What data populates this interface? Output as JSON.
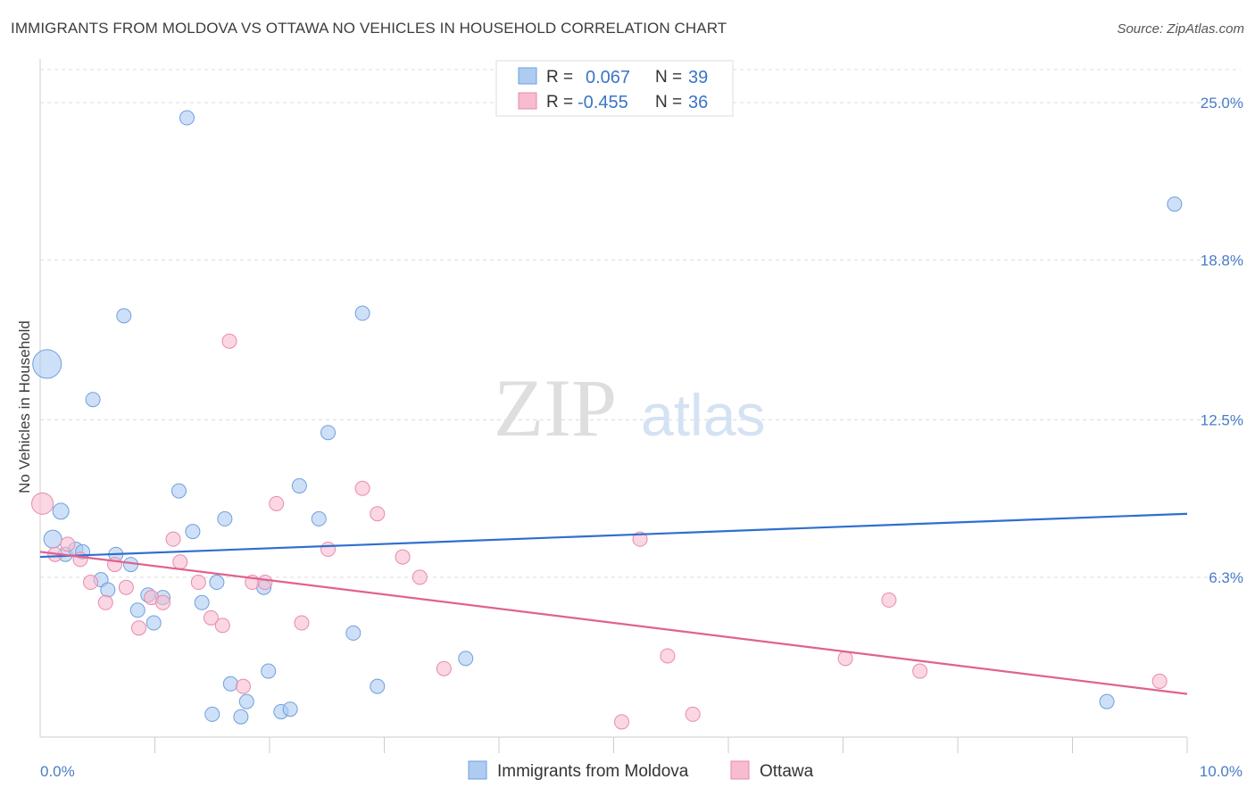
{
  "header": {
    "title": "IMMIGRANTS FROM MOLDOVA VS OTTAWA NO VEHICLES IN HOUSEHOLD CORRELATION CHART",
    "source": "Source: ZipAtlas.com"
  },
  "watermark": {
    "zip": "ZIP",
    "atlas": "atlas"
  },
  "legend": {
    "rows": [
      {
        "r_label": "R =",
        "r_value": "0.067",
        "n_label": "N =",
        "n_value": "39",
        "color": "#aecbf2"
      },
      {
        "r_label": "R =",
        "r_value": "-0.455",
        "n_label": "N =",
        "n_value": "36",
        "color": "#f7bcd0"
      }
    ]
  },
  "bottom_legend": [
    {
      "label": "Immigrants from Moldova",
      "color": "#aecbf2"
    },
    {
      "label": "Ottawa",
      "color": "#f7bcd0"
    }
  ],
  "chart_data": {
    "type": "scatter",
    "ylabel": "No Vehicles in Household",
    "xlim": [
      0,
      10
    ],
    "ylim": [
      0,
      26.3
    ],
    "x_tick_labels": [
      {
        "value": 0,
        "label": "0.0%"
      },
      {
        "value": 10,
        "label": "10.0%"
      }
    ],
    "y_ticks": [
      {
        "value": 6.3,
        "label": "6.3%"
      },
      {
        "value": 12.5,
        "label": "12.5%"
      },
      {
        "value": 18.8,
        "label": "18.8%"
      },
      {
        "value": 25.0,
        "label": "25.0%"
      }
    ],
    "x_minor_ticks": [
      1,
      2,
      3,
      4,
      5,
      6,
      7,
      8,
      9
    ],
    "grid": true,
    "legend_position": "top-center",
    "series": [
      {
        "name": "Immigrants from Moldova",
        "color": "#aecbf2",
        "stroke": "#6f9fdc",
        "trend_color": "#2f6fcf",
        "trend": [
          [
            0,
            7.1
          ],
          [
            10,
            8.8
          ]
        ],
        "points": [
          [
            0.06,
            14.7,
            16
          ],
          [
            0.11,
            7.8,
            10
          ],
          [
            0.18,
            8.9,
            9
          ],
          [
            0.22,
            7.2,
            8
          ],
          [
            0.31,
            7.4,
            8
          ],
          [
            0.37,
            7.3,
            8
          ],
          [
            0.46,
            13.3,
            8
          ],
          [
            0.53,
            6.2,
            8
          ],
          [
            0.59,
            5.8,
            8
          ],
          [
            0.66,
            7.2,
            8
          ],
          [
            0.73,
            16.6,
            8
          ],
          [
            0.79,
            6.8,
            8
          ],
          [
            0.85,
            5.0,
            8
          ],
          [
            0.94,
            5.6,
            8
          ],
          [
            0.99,
            4.5,
            8
          ],
          [
            1.07,
            5.5,
            8
          ],
          [
            1.21,
            9.7,
            8
          ],
          [
            1.28,
            24.4,
            8
          ],
          [
            1.33,
            8.1,
            8
          ],
          [
            1.41,
            5.3,
            8
          ],
          [
            1.5,
            0.9,
            8
          ],
          [
            1.54,
            6.1,
            8
          ],
          [
            1.61,
            8.6,
            8
          ],
          [
            1.66,
            2.1,
            8
          ],
          [
            1.75,
            0.8,
            8
          ],
          [
            1.8,
            1.4,
            8
          ],
          [
            1.95,
            5.9,
            8
          ],
          [
            1.99,
            2.6,
            8
          ],
          [
            2.1,
            1.0,
            8
          ],
          [
            2.18,
            1.1,
            8
          ],
          [
            2.26,
            9.9,
            8
          ],
          [
            2.43,
            8.6,
            8
          ],
          [
            2.51,
            12.0,
            8
          ],
          [
            2.73,
            4.1,
            8
          ],
          [
            2.81,
            16.7,
            8
          ],
          [
            2.94,
            2.0,
            8
          ],
          [
            3.71,
            3.1,
            8
          ],
          [
            9.3,
            1.4,
            8
          ],
          [
            9.89,
            21.0,
            8
          ]
        ]
      },
      {
        "name": "Ottawa",
        "color": "#f7bcd0",
        "stroke": "#e88aab",
        "trend_color": "#e0628f",
        "trend": [
          [
            0,
            7.3
          ],
          [
            10,
            1.7
          ]
        ],
        "points": [
          [
            0.02,
            9.2,
            12
          ],
          [
            0.13,
            7.2,
            8
          ],
          [
            0.24,
            7.6,
            8
          ],
          [
            0.35,
            7.0,
            8
          ],
          [
            0.44,
            6.1,
            8
          ],
          [
            0.57,
            5.3,
            8
          ],
          [
            0.65,
            6.8,
            8
          ],
          [
            0.75,
            5.9,
            8
          ],
          [
            0.86,
            4.3,
            8
          ],
          [
            0.97,
            5.5,
            8
          ],
          [
            1.07,
            5.3,
            8
          ],
          [
            1.16,
            7.8,
            8
          ],
          [
            1.22,
            6.9,
            8
          ],
          [
            1.38,
            6.1,
            8
          ],
          [
            1.49,
            4.7,
            8
          ],
          [
            1.59,
            4.4,
            8
          ],
          [
            1.65,
            15.6,
            8
          ],
          [
            1.77,
            2.0,
            8
          ],
          [
            1.85,
            6.1,
            8
          ],
          [
            1.96,
            6.1,
            8
          ],
          [
            2.06,
            9.2,
            8
          ],
          [
            2.28,
            4.5,
            8
          ],
          [
            2.51,
            7.4,
            8
          ],
          [
            2.81,
            9.8,
            8
          ],
          [
            2.94,
            8.8,
            8
          ],
          [
            3.16,
            7.1,
            8
          ],
          [
            3.31,
            6.3,
            8
          ],
          [
            3.52,
            2.7,
            8
          ],
          [
            5.07,
            0.6,
            8
          ],
          [
            5.23,
            7.8,
            8
          ],
          [
            5.47,
            3.2,
            8
          ],
          [
            5.69,
            0.9,
            8
          ],
          [
            7.02,
            3.1,
            8
          ],
          [
            7.4,
            5.4,
            8
          ],
          [
            7.67,
            2.6,
            8
          ],
          [
            9.76,
            2.2,
            8
          ]
        ]
      }
    ]
  }
}
